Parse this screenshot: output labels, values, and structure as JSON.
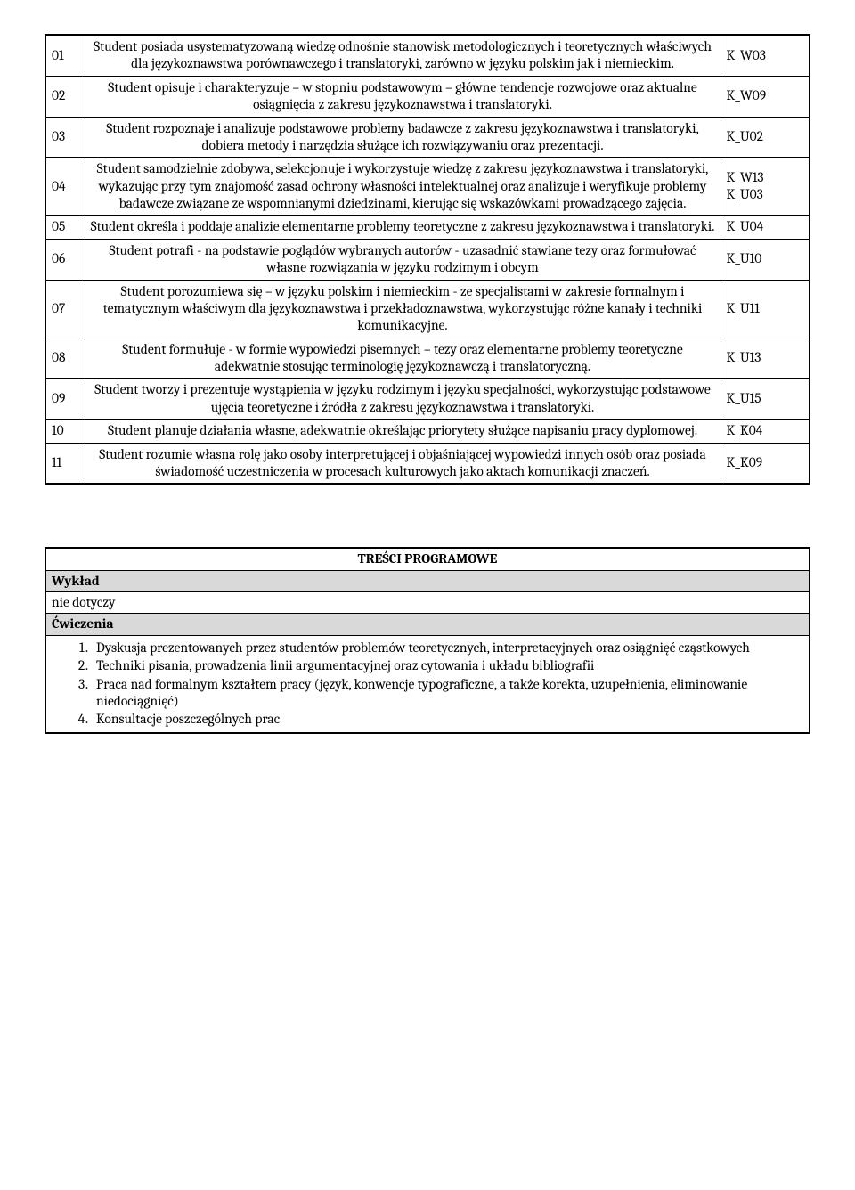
{
  "outcomes": {
    "rows": [
      {
        "id": "01",
        "desc": "Student posiada usystematyzowaną wiedzę odnośnie stanowisk metodologicznych i teoretycznych właściwych dla językoznawstwa porównawczego i translatoryki, zarówno w języku polskim jak i niemieckim.",
        "code": "K_W03"
      },
      {
        "id": "02",
        "desc": "Student opisuje i charakteryzuje – w stopniu podstawowym – główne tendencje rozwojowe oraz aktualne osiągnięcia z zakresu językoznawstwa i translatoryki.",
        "code": "K_W09"
      },
      {
        "id": "03",
        "desc": "Student rozpoznaje i analizuje podstawowe problemy badawcze z zakresu językoznawstwa i translatoryki, dobiera metody i narzędzia służące ich rozwiązywaniu oraz prezentacji.",
        "code": "K_U02"
      },
      {
        "id": "04",
        "desc": "Student samodzielnie zdobywa, selekcjonuje i wykorzystuje wiedzę z zakresu językoznawstwa i translatoryki, wykazując przy tym znajomość zasad ochrony własności intelektualnej oraz analizuje i weryfikuje problemy badawcze związane ze wspomnianymi dziedzinami, kierując się wskazówkami prowadzącego zajęcia.",
        "code": "K_W13\nK_U03"
      },
      {
        "id": "05",
        "desc": "Student określa i poddaje analizie elementarne problemy teoretyczne z zakresu językoznawstwa i translatoryki.",
        "code": "K_U04"
      },
      {
        "id": "06",
        "desc": "Student potrafi - na podstawie poglądów wybranych autorów - uzasadnić stawiane tezy oraz formułować własne rozwiązania w języku rodzimym i obcym",
        "code": "K_U10"
      },
      {
        "id": "07",
        "desc": "Student porozumiewa się – w języku polskim i niemieckim - ze specjalistami w zakresie formalnym i tematycznym właściwym dla językoznawstwa i przekładoznawstwa, wykorzystując różne kanały i techniki komunikacyjne.",
        "code": "K_U11"
      },
      {
        "id": "08",
        "desc": "Student formułuje - w formie wypowiedzi pisemnych – tezy oraz elementarne problemy teoretyczne adekwatnie stosując terminologię językoznawczą i translatoryczną.",
        "code": "K_U13"
      },
      {
        "id": "09",
        "desc": "Student tworzy i prezentuje wystąpienia w języku rodzimym i języku specjalności, wykorzystując podstawowe ujęcia teoretyczne i źródła z zakresu językoznawstwa i translatoryki.",
        "code": "K_U15"
      },
      {
        "id": "10",
        "desc": "Student planuje działania własne, adekwatnie określając priorytety służące napisaniu pracy dyplomowej.",
        "code": "K_K04"
      },
      {
        "id": "11",
        "desc": "Student rozumie własna rolę jako osoby interpretującej i objaśniającej wypowiedzi innych osób oraz posiada świadomość uczestniczenia w procesach kulturowych jako aktach komunikacji znaczeń.",
        "code": "K_K09"
      }
    ]
  },
  "program": {
    "title": "TREŚCI PROGRAMOWE",
    "lecture_label": "Wykład",
    "lecture_content": "nie dotyczy",
    "exercises_label": "Ćwiczenia",
    "items": [
      "Dyskusja prezentowanych przez studentów problemów teoretycznych, interpretacyjnych oraz osiągnięć cząstkowych",
      "Techniki pisania, prowadzenia linii argumentacyjnej oraz cytowania i układu bibliografii",
      "Praca nad formalnym kształtem pracy (język, konwencje typograficzne, a także korekta, uzupełnienia, eliminowanie niedociągnięć)",
      "Konsultacje poszczególnych prac"
    ]
  }
}
